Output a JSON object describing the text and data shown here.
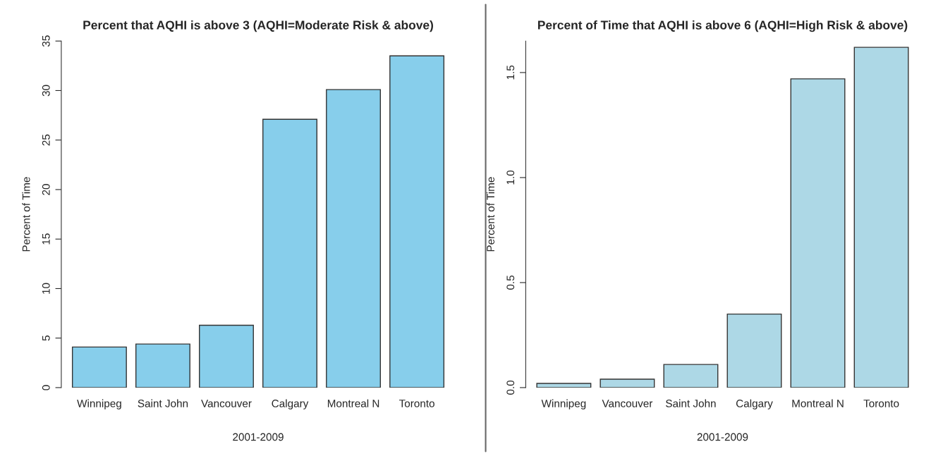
{
  "chart_data": [
    {
      "type": "bar",
      "title": "Percent that AQHI is above 3 (AQHI=Moderate Risk & above)",
      "xlabel": "2001-2009",
      "ylabel": "Percent of Time",
      "categories": [
        "Winnipeg",
        "Saint John",
        "Vancouver",
        "Calgary",
        "Montreal N",
        "Toronto"
      ],
      "values": [
        4.1,
        4.4,
        6.3,
        27.1,
        30.1,
        33.5
      ],
      "color": "#87ceeb",
      "ylim": [
        0,
        35
      ],
      "yticks": [
        0,
        5,
        10,
        15,
        20,
        25,
        30,
        35
      ],
      "grid": false,
      "legend": false
    },
    {
      "type": "bar",
      "title": "Percent of Time that AQHI is above 6 (AQHI=High Risk & above)",
      "xlabel": "2001-2009",
      "ylabel": "Percent of Time",
      "categories": [
        "Winnipeg",
        "Vancouver",
        "Saint John",
        "Calgary",
        "Montreal N",
        "Toronto"
      ],
      "values": [
        0.02,
        0.04,
        0.11,
        0.35,
        1.47,
        1.62
      ],
      "color": "#add8e6",
      "ylim": [
        0,
        1.65
      ],
      "yticks": [
        {
          "value": 0,
          "label": "0.0"
        },
        {
          "value": 0.5,
          "label": "0.5"
        },
        {
          "value": 1.0,
          "label": "1.0"
        },
        {
          "value": 1.5,
          "label": "1.5"
        }
      ],
      "grid": false,
      "legend": false
    }
  ]
}
